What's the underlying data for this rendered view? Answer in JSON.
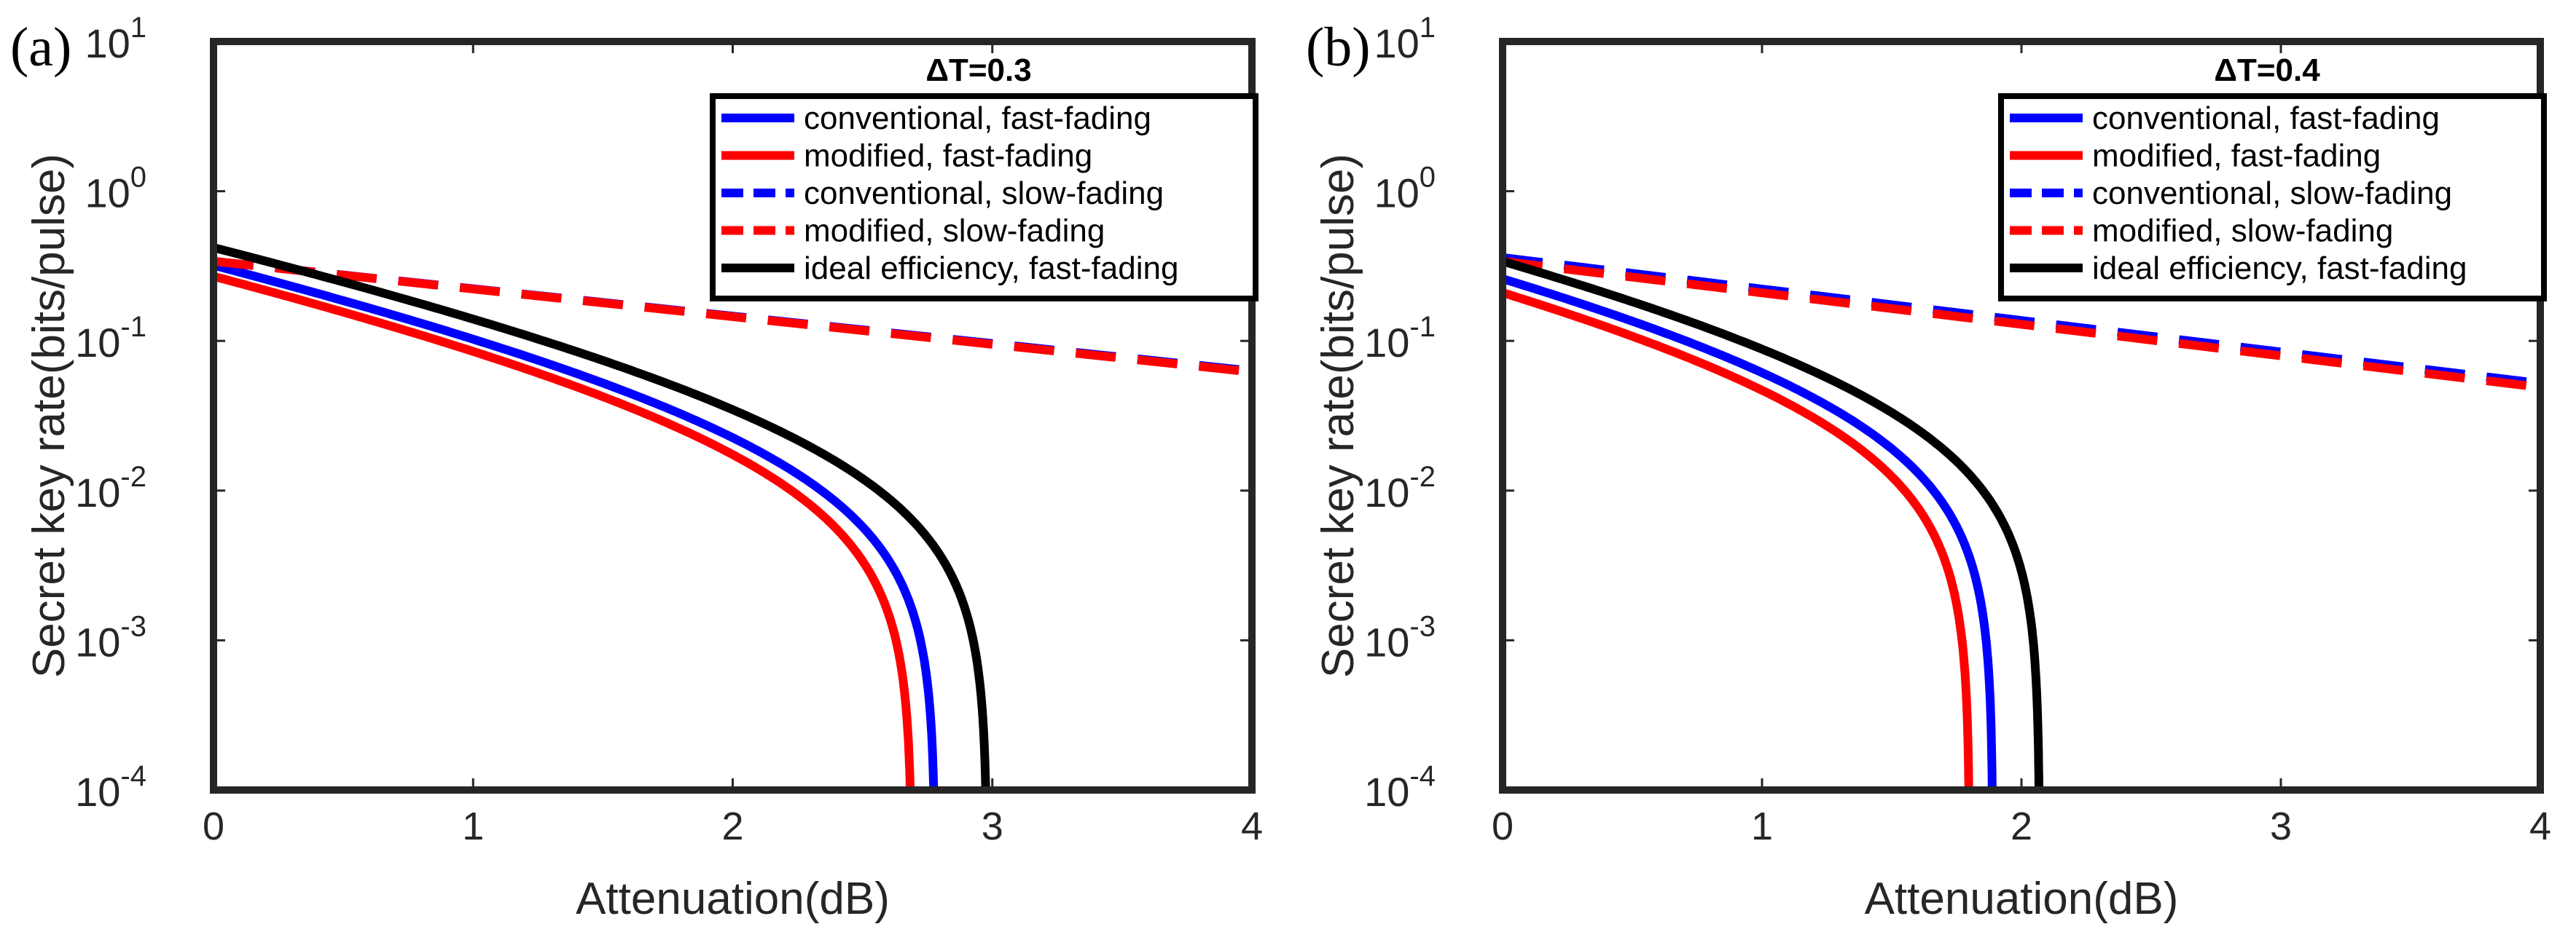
{
  "chart_data": [
    {
      "type": "line",
      "panel_label": "(a)",
      "title": "ΔT=0.3",
      "xlabel": "Attenuation(dB)",
      "ylabel": "Secret key rate(bits/pulse)",
      "xlim": [
        0,
        4
      ],
      "ylim": [
        0.0001,
        10
      ],
      "yscale": "log",
      "xticks": [
        "0",
        "1",
        "2",
        "3",
        "4"
      ],
      "yticks": [
        {
          "base": "10",
          "exp": "-4"
        },
        {
          "base": "10",
          "exp": "-3"
        },
        {
          "base": "10",
          "exp": "-2"
        },
        {
          "base": "10",
          "exp": "-1"
        },
        {
          "base": "10",
          "exp": "0"
        },
        {
          "base": "10",
          "exp": "1"
        }
      ],
      "grid": false,
      "legend_position": "top-right",
      "series": [
        {
          "name": "conventional, fast-fading",
          "color": "#0000ff",
          "style": "solid",
          "kind": "fast",
          "y0": 0.32,
          "k": 0.3,
          "cutoff": 2.78
        },
        {
          "name": "modified, fast-fading",
          "color": "#ff0000",
          "style": "solid",
          "kind": "fast",
          "y0": 0.27,
          "k": 0.3,
          "cutoff": 2.69
        },
        {
          "name": "conventional, slow-fading",
          "color": "#0000ff",
          "style": "dashed",
          "kind": "slow",
          "y0": 0.34,
          "yend": 0.063
        },
        {
          "name": "modified, slow-fading",
          "color": "#ff0000",
          "style": "dashed",
          "kind": "slow",
          "y0": 0.34,
          "yend": 0.062
        },
        {
          "name": "ideal efficiency, fast-fading",
          "color": "#000000",
          "style": "solid",
          "kind": "fast",
          "y0": 0.42,
          "k": 0.3,
          "cutoff": 2.98
        }
      ]
    },
    {
      "type": "line",
      "panel_label": "(b)",
      "title": "ΔT=0.4",
      "xlabel": "Attenuation(dB)",
      "ylabel": "Secret key rate(bits/pulse)",
      "xlim": [
        0,
        4
      ],
      "ylim": [
        0.0001,
        10
      ],
      "yscale": "log",
      "xticks": [
        "0",
        "1",
        "2",
        "3",
        "4"
      ],
      "yticks": [
        {
          "base": "10",
          "exp": "-4"
        },
        {
          "base": "10",
          "exp": "-3"
        },
        {
          "base": "10",
          "exp": "-2"
        },
        {
          "base": "10",
          "exp": "-1"
        },
        {
          "base": "10",
          "exp": "0"
        },
        {
          "base": "10",
          "exp": "1"
        }
      ],
      "grid": false,
      "legend_position": "top-right",
      "series": [
        {
          "name": "conventional, fast-fading",
          "color": "#0000ff",
          "style": "solid",
          "kind": "fast",
          "y0": 0.26,
          "k": 0.3,
          "cutoff": 1.89
        },
        {
          "name": "modified, fast-fading",
          "color": "#ff0000",
          "style": "solid",
          "kind": "fast",
          "y0": 0.21,
          "k": 0.3,
          "cutoff": 1.8
        },
        {
          "name": "conventional, slow-fading",
          "color": "#0000ff",
          "style": "dashed",
          "kind": "slow",
          "y0": 0.36,
          "yend": 0.052
        },
        {
          "name": "modified, slow-fading",
          "color": "#ff0000",
          "style": "dashed",
          "kind": "slow",
          "y0": 0.34,
          "yend": 0.049
        },
        {
          "name": "ideal efficiency, fast-fading",
          "color": "#000000",
          "style": "solid",
          "kind": "fast",
          "y0": 0.34,
          "k": 0.3,
          "cutoff": 2.07
        }
      ]
    }
  ]
}
